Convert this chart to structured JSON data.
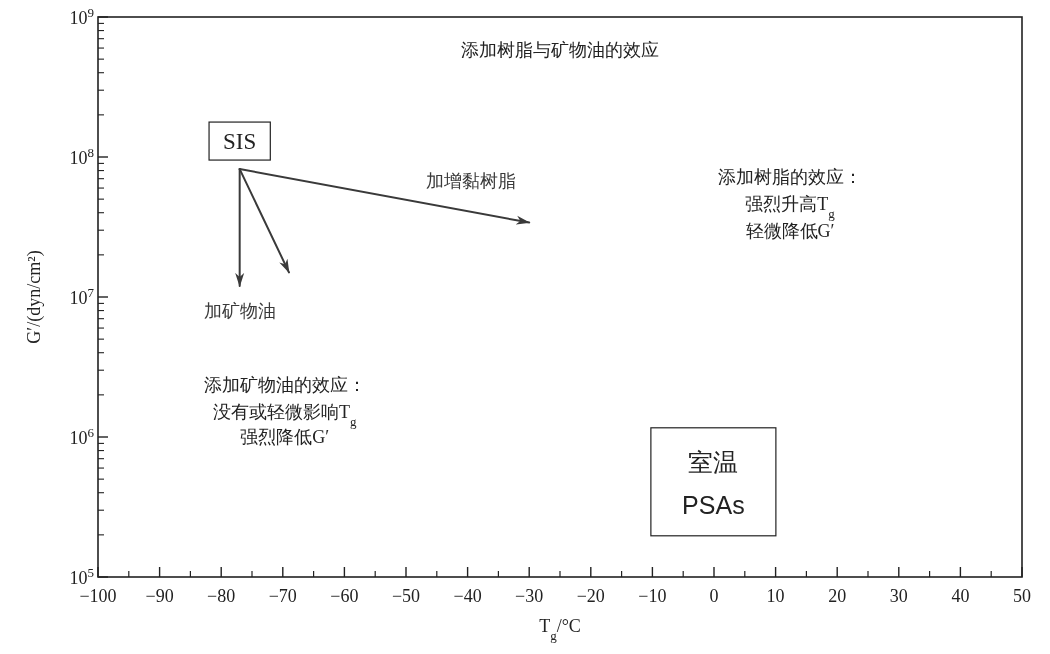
{
  "chart_data": {
    "type": "line",
    "title": "添加树脂与矿物油的效应",
    "xlabel": "T$_{g}$/°C",
    "ylabel": "G′/(dyn/cm²)",
    "log": "y",
    "xlim": [
      -100,
      50
    ],
    "ylim": [
      100000,
      1000000000
    ],
    "xticks": [
      -100,
      -90,
      -80,
      -70,
      -60,
      -50,
      -40,
      -30,
      -20,
      -10,
      0,
      10,
      20,
      30,
      40,
      50
    ],
    "yticks": [
      {
        "value": 100000,
        "label": "10$^{5}$"
      },
      {
        "value": 1000000,
        "label": "10$^{6}$"
      },
      {
        "value": 10000000,
        "label": "10$^{7}$"
      },
      {
        "value": 100000000,
        "label": "10$^{8}$"
      },
      {
        "value": 1000000000,
        "label": "10$^{9}$"
      }
    ],
    "grid": false,
    "marker": "none",
    "line_style": "solid",
    "series": [
      {
        "name": "加矿物油",
        "color": "#3a3a3a",
        "x": [
          -77,
          -77
        ],
        "values": [
          82000000,
          12000000
        ]
      },
      {
        "color": "#3a3a3a",
        "x": [
          -77,
          -69
        ],
        "values": [
          82000000,
          15000000
        ]
      },
      {
        "name": "加增黏树脂",
        "color": "#3a3a3a",
        "x": [
          -77,
          -30
        ],
        "values": [
          82000000,
          34000000
        ]
      }
    ],
    "annotations": [
      {
        "text": "SIS",
        "x": -77,
        "y": 82000000
      },
      "添加树脂的效应：",
      "强烈升高T$_{g}$",
      "轻微降低G′",
      "添加矿物油的效应：",
      "没有或轻微影响T$_{g}$",
      "强烈降低G′",
      "室温",
      "PSAs"
    ]
  }
}
